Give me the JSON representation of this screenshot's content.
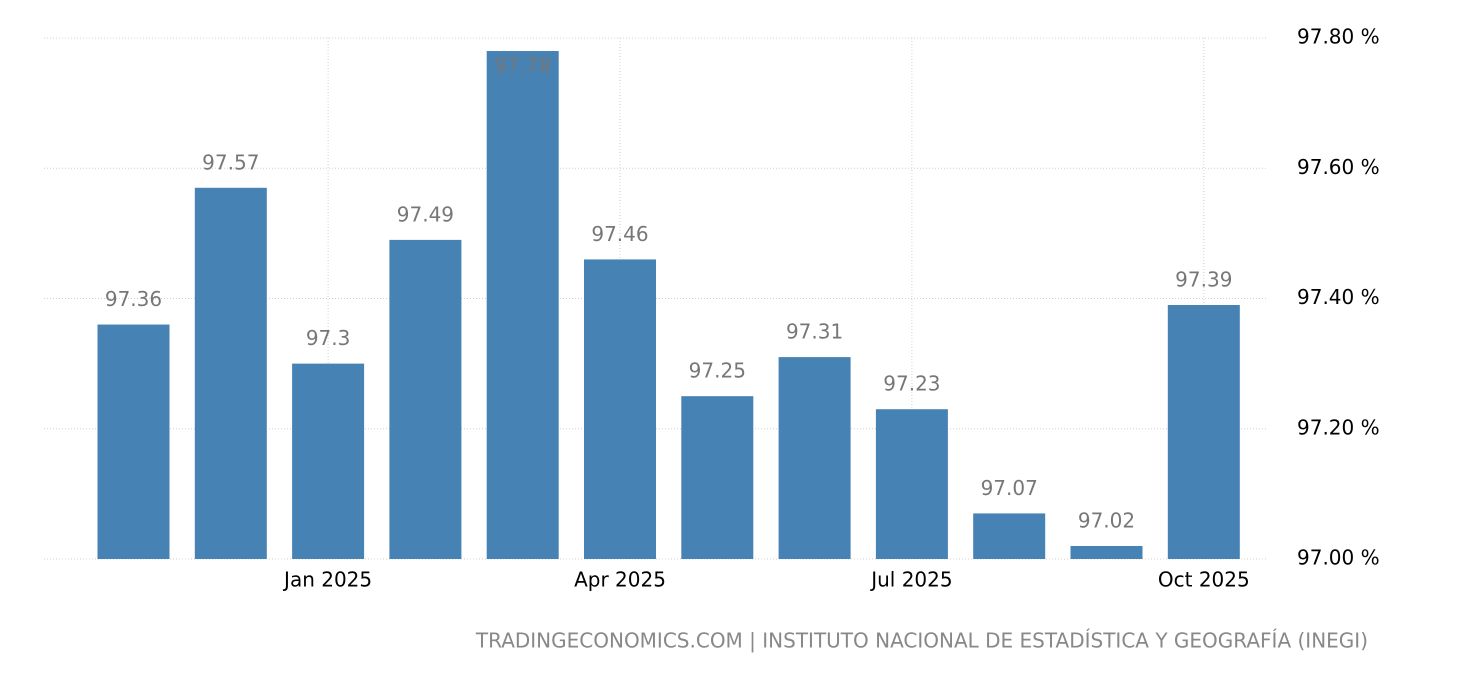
{
  "chart_data": {
    "type": "bar",
    "categories": [
      null,
      null,
      "Jan 2025",
      null,
      null,
      "Apr 2025",
      null,
      null,
      "Jul 2025",
      null,
      null,
      "Oct 2025"
    ],
    "values": [
      97.36,
      97.57,
      97.3,
      97.49,
      97.78,
      97.46,
      97.25,
      97.31,
      97.23,
      97.07,
      97.02,
      97.39
    ],
    "color": "#4682b4",
    "ylim": [
      97.0,
      97.8
    ],
    "yticks": [
      {
        "value": 97.0,
        "label": "97.00 %"
      },
      {
        "value": 97.2,
        "label": "97.20 %"
      },
      {
        "value": 97.4,
        "label": "97.40 %"
      },
      {
        "value": 97.6,
        "label": "97.60 %"
      },
      {
        "value": 97.8,
        "label": "97.80 %"
      }
    ],
    "grid": true,
    "source": "TRADINGECONOMICS.COM | INSTITUTO NACIONAL DE ESTADÍSTICA Y GEOGRAFÍA (INEGI)"
  }
}
